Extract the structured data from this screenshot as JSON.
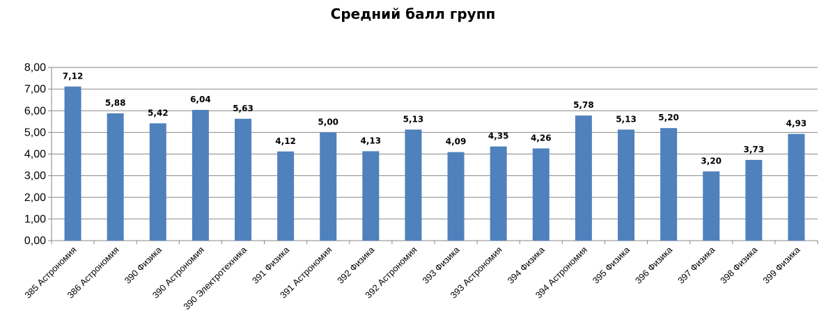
{
  "chart_data": {
    "type": "bar",
    "title": "Средний балл групп",
    "categories": [
      "385 Астрономия",
      "386 Астрономия",
      "390 Физика",
      "390 Астрономия",
      "390 Электротехника",
      "391 Физика",
      "391 Астрономия",
      "392 Физика",
      "392 Астрономия",
      "393 Физика",
      "393 Астрономия",
      "394 Физика",
      "394 Астрономия",
      "395 Физика",
      "396 Физика",
      "397 Физика",
      "398 Физика",
      "399 Физика"
    ],
    "values": [
      7.12,
      5.88,
      5.42,
      6.04,
      5.63,
      4.12,
      5.0,
      4.13,
      5.13,
      4.09,
      4.35,
      4.26,
      5.78,
      5.13,
      5.2,
      3.2,
      3.73,
      4.93
    ],
    "value_labels": [
      "7,12",
      "5,88",
      "5,42",
      "6,04",
      "5,63",
      "4,12",
      "5,00",
      "4,13",
      "5,13",
      "4,09",
      "4,35",
      "4,26",
      "5,78",
      "5,13",
      "5,20",
      "3,20",
      "3,73",
      "4,93"
    ],
    "ylim": [
      0,
      8
    ],
    "yticks": [
      "0,00",
      "1,00",
      "2,00",
      "3,00",
      "4,00",
      "5,00",
      "6,00",
      "7,00",
      "8,00"
    ],
    "grid": true,
    "legend": "none",
    "bar_color": "#4F81BD",
    "grid_color": "#868686"
  }
}
